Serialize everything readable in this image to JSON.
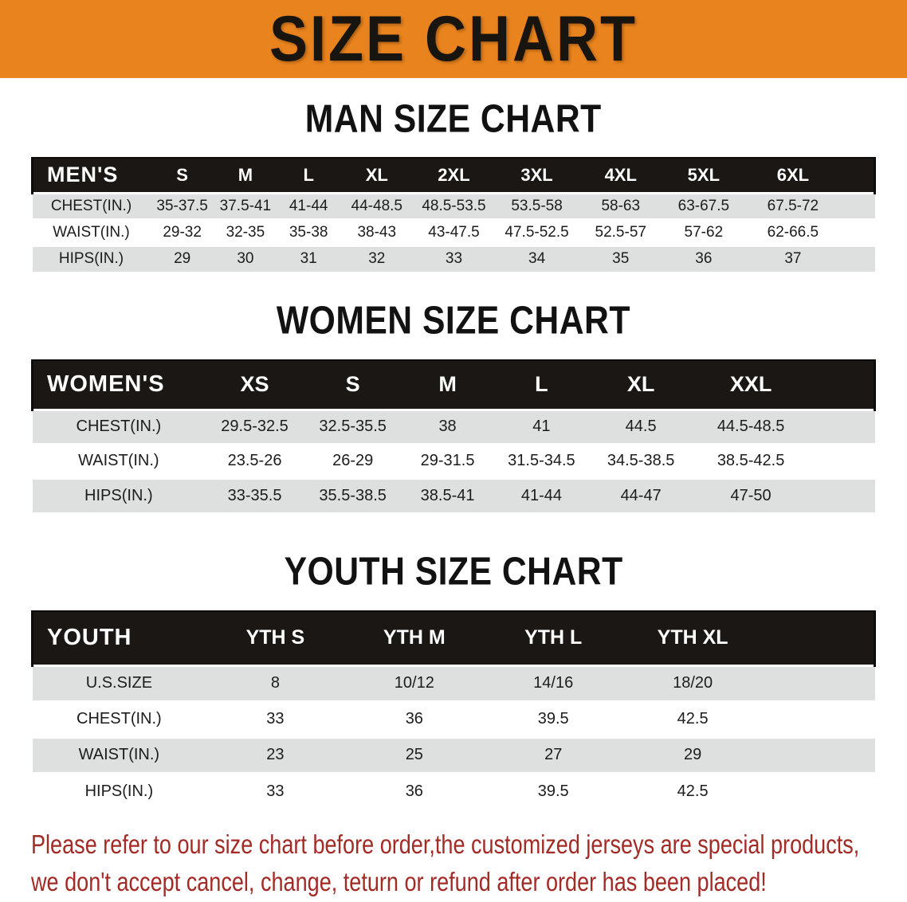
{
  "banner": {
    "title": "SIZE CHART",
    "bg_color": "#E8831E",
    "text_color": "#181410"
  },
  "sections": [
    {
      "heading": "MAN SIZE CHART",
      "table": {
        "header": [
          "MEN'S",
          "S",
          "M",
          "L",
          "XL",
          "2XL",
          "3XL",
          "4XL",
          "5XL",
          "6XL"
        ],
        "rows": [
          {
            "label": "CHEST(IN.)",
            "values": [
              "35-37.5",
              "37.5-41",
              "41-44",
              "44-48.5",
              "48.5-53.5",
              "53.5-58",
              "58-63",
              "63-67.5",
              "67.5-72"
            ]
          },
          {
            "label": "WAIST(IN.)",
            "values": [
              "29-32",
              "32-35",
              "35-38",
              "38-43",
              "43-47.5",
              "47.5-52.5",
              "52.5-57",
              "57-62",
              "62-66.5"
            ]
          },
          {
            "label": "HIPS(IN.)",
            "values": [
              "29",
              "30",
              "31",
              "32",
              "33",
              "34",
              "35",
              "36",
              "37"
            ]
          }
        ]
      }
    },
    {
      "heading": "WOMEN SIZE CHART",
      "table": {
        "header": [
          "WOMEN'S",
          "XS",
          "S",
          "M",
          "L",
          "XL",
          "XXL"
        ],
        "rows": [
          {
            "label": "CHEST(IN.)",
            "values": [
              "29.5-32.5",
              "32.5-35.5",
              "38",
              "41",
              "44.5",
              "44.5-48.5"
            ]
          },
          {
            "label": "WAIST(IN.)",
            "values": [
              "23.5-26",
              "26-29",
              "29-31.5",
              "31.5-34.5",
              "34.5-38.5",
              "38.5-42.5"
            ]
          },
          {
            "label": "HIPS(IN.)",
            "values": [
              "33-35.5",
              "35.5-38.5",
              "38.5-41",
              "41-44",
              "44-47",
              "47-50"
            ]
          }
        ]
      }
    },
    {
      "heading": "YOUTH SIZE CHART",
      "table": {
        "header": [
          "YOUTH",
          "YTH S",
          "YTH M",
          "YTH L",
          "YTH XL"
        ],
        "rows": [
          {
            "label": "U.S.SIZE",
            "values": [
              "8",
              "10/12",
              "14/16",
              "18/20"
            ]
          },
          {
            "label": "CHEST(IN.)",
            "values": [
              "33",
              "36",
              "39.5",
              "42.5"
            ]
          },
          {
            "label": "WAIST(IN.)",
            "values": [
              "23",
              "25",
              "27",
              "29"
            ]
          },
          {
            "label": "HIPS(IN.)",
            "values": [
              "33",
              "36",
              "39.5",
              "42.5"
            ]
          }
        ]
      }
    }
  ],
  "footer": {
    "line1": "Please refer to our size chart before order,the customized jerseys are special products,",
    "line2": "we don't accept cancel, change, teturn or refund after order has been placed!",
    "text_color": "#A32B26"
  }
}
